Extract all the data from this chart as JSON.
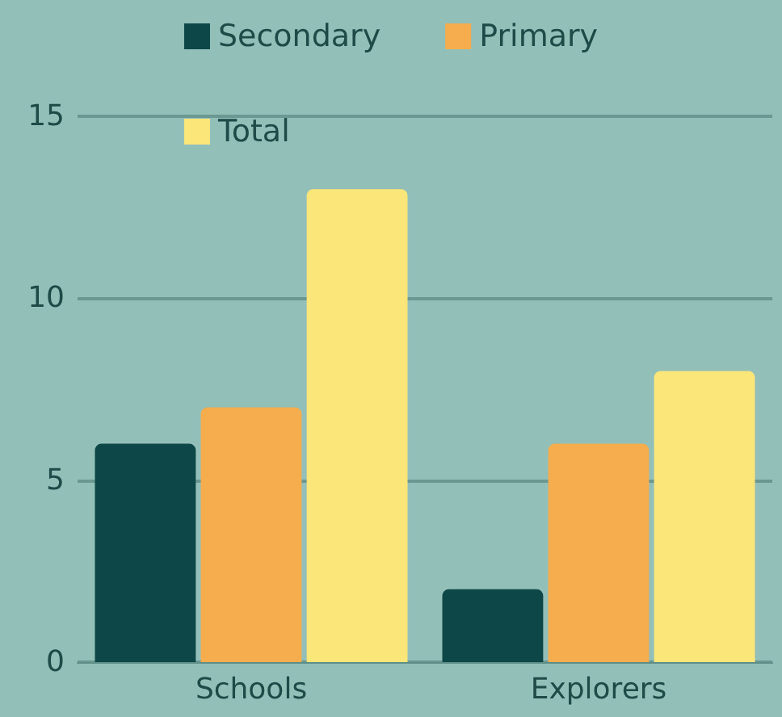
{
  "chart_data": {
    "type": "bar",
    "categories": [
      "Schools",
      "Explorers"
    ],
    "series": [
      {
        "name": "Secondary",
        "color": "#0d4747",
        "values": [
          6,
          2
        ]
      },
      {
        "name": "Primary",
        "color": "#f5ad4d",
        "values": [
          7,
          6
        ]
      },
      {
        "name": "Total",
        "color": "#fbe679",
        "values": [
          13,
          8
        ]
      }
    ],
    "ylim": [
      0,
      15
    ],
    "yticks": [
      0,
      5,
      10,
      15
    ],
    "grid": "y",
    "legend": "top"
  }
}
